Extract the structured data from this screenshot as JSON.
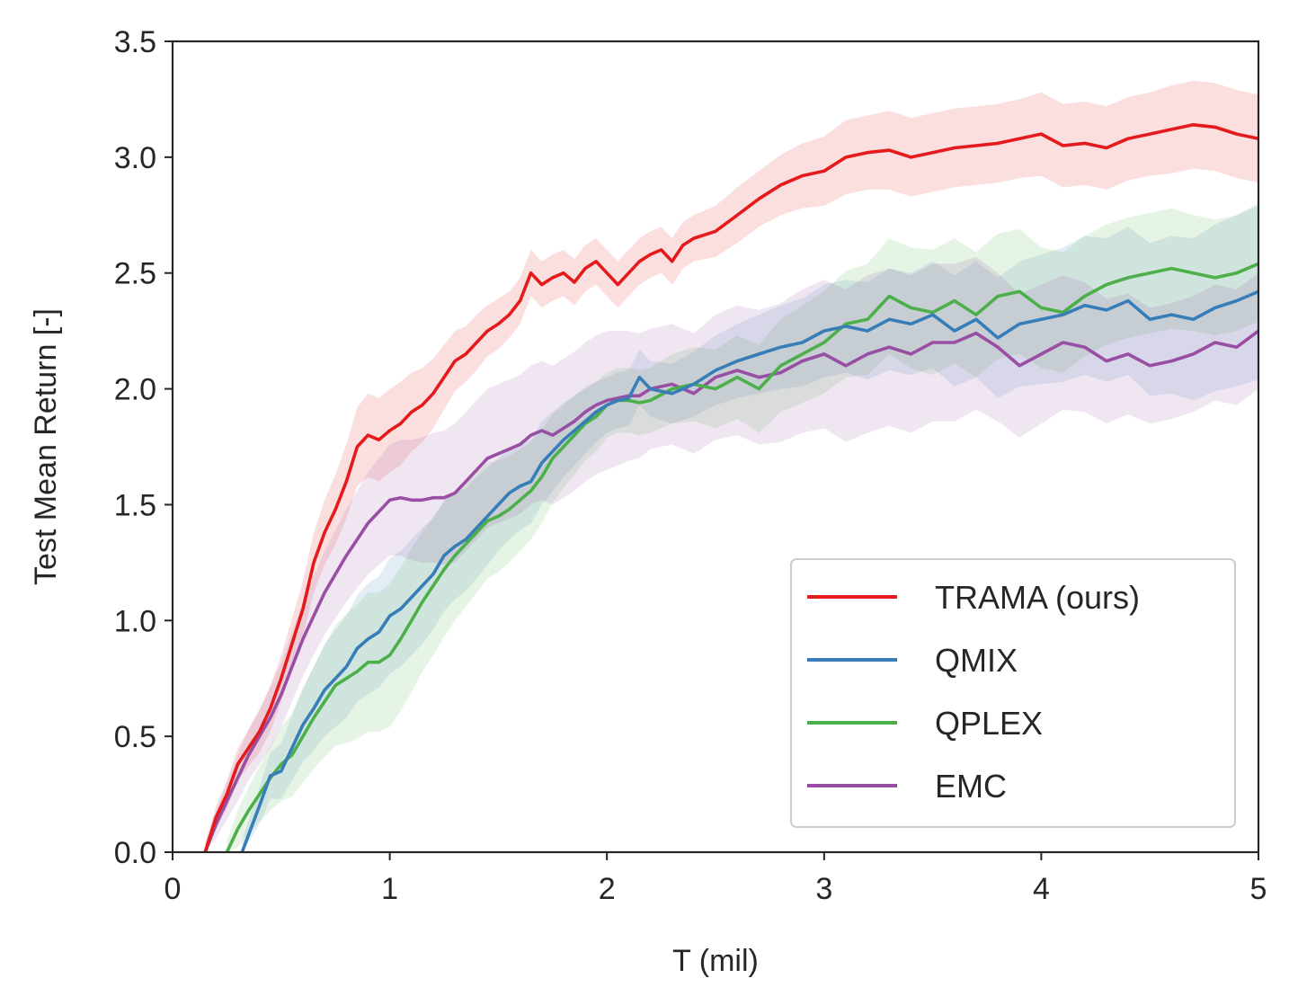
{
  "chart_data": {
    "type": "line",
    "title": "",
    "xlabel": "T (mil)",
    "ylabel": "Test Mean Return [-]",
    "xlim": [
      0,
      5
    ],
    "ylim": [
      0,
      3.5
    ],
    "xticks": [
      0,
      1,
      2,
      3,
      4,
      5
    ],
    "xtick_labels": [
      "0",
      "1",
      "2",
      "3",
      "4",
      "5"
    ],
    "yticks": [
      0,
      0.5,
      1,
      1.5,
      2,
      2.5,
      3,
      3.5
    ],
    "ytick_labels": [
      "0.0",
      "0.5",
      "1.0",
      "1.5",
      "2.0",
      "2.5",
      "3.0",
      "3.5"
    ],
    "grid": false,
    "legend_position": "bottom-right",
    "series": [
      {
        "name": "TRAMA (ours)",
        "color": "#e41a1c",
        "x": [
          0.15,
          0.2,
          0.25,
          0.3,
          0.35,
          0.4,
          0.45,
          0.5,
          0.55,
          0.6,
          0.65,
          0.7,
          0.75,
          0.8,
          0.85,
          0.9,
          0.95,
          1.0,
          1.05,
          1.1,
          1.15,
          1.2,
          1.25,
          1.3,
          1.35,
          1.4,
          1.45,
          1.5,
          1.55,
          1.6,
          1.65,
          1.7,
          1.75,
          1.8,
          1.85,
          1.9,
          1.95,
          2.0,
          2.05,
          2.1,
          2.15,
          2.2,
          2.25,
          2.3,
          2.35,
          2.4,
          2.5,
          2.6,
          2.7,
          2.8,
          2.9,
          3.0,
          3.1,
          3.2,
          3.3,
          3.4,
          3.5,
          3.6,
          3.7,
          3.8,
          3.9,
          4.0,
          4.1,
          4.2,
          4.3,
          4.4,
          4.5,
          4.6,
          4.7,
          4.8,
          4.9,
          5.0
        ],
        "y": [
          0.0,
          0.15,
          0.25,
          0.38,
          0.45,
          0.52,
          0.62,
          0.75,
          0.9,
          1.05,
          1.25,
          1.38,
          1.48,
          1.6,
          1.75,
          1.8,
          1.78,
          1.82,
          1.85,
          1.9,
          1.93,
          1.98,
          2.05,
          2.12,
          2.15,
          2.2,
          2.25,
          2.28,
          2.32,
          2.38,
          2.5,
          2.45,
          2.48,
          2.5,
          2.46,
          2.52,
          2.55,
          2.5,
          2.45,
          2.5,
          2.55,
          2.58,
          2.6,
          2.55,
          2.62,
          2.65,
          2.68,
          2.75,
          2.82,
          2.88,
          2.92,
          2.94,
          3.0,
          3.02,
          3.03,
          3.0,
          3.02,
          3.04,
          3.05,
          3.06,
          3.08,
          3.1,
          3.05,
          3.06,
          3.04,
          3.08,
          3.1,
          3.12,
          3.14,
          3.13,
          3.1,
          3.08
        ],
        "band": [
          0.04,
          0.05,
          0.06,
          0.07,
          0.08,
          0.09,
          0.1,
          0.1,
          0.11,
          0.12,
          0.13,
          0.14,
          0.15,
          0.16,
          0.17,
          0.18,
          0.18,
          0.18,
          0.18,
          0.17,
          0.16,
          0.15,
          0.14,
          0.13,
          0.12,
          0.12,
          0.11,
          0.11,
          0.1,
          0.1,
          0.1,
          0.1,
          0.1,
          0.1,
          0.1,
          0.1,
          0.1,
          0.1,
          0.1,
          0.1,
          0.1,
          0.1,
          0.1,
          0.1,
          0.1,
          0.1,
          0.11,
          0.12,
          0.12,
          0.13,
          0.14,
          0.15,
          0.16,
          0.16,
          0.17,
          0.17,
          0.17,
          0.17,
          0.17,
          0.17,
          0.17,
          0.18,
          0.18,
          0.18,
          0.18,
          0.18,
          0.18,
          0.19,
          0.19,
          0.19,
          0.19,
          0.19
        ]
      },
      {
        "name": "QMIX",
        "color": "#377eb8",
        "x": [
          0.32,
          0.4,
          0.45,
          0.5,
          0.55,
          0.6,
          0.65,
          0.7,
          0.75,
          0.8,
          0.85,
          0.9,
          0.95,
          1.0,
          1.05,
          1.1,
          1.15,
          1.2,
          1.25,
          1.3,
          1.35,
          1.4,
          1.45,
          1.5,
          1.55,
          1.6,
          1.65,
          1.7,
          1.75,
          1.8,
          1.85,
          1.9,
          1.95,
          2.0,
          2.05,
          2.1,
          2.15,
          2.2,
          2.3,
          2.4,
          2.5,
          2.6,
          2.7,
          2.8,
          2.9,
          3.0,
          3.1,
          3.2,
          3.3,
          3.4,
          3.5,
          3.6,
          3.7,
          3.8,
          3.9,
          4.0,
          4.1,
          4.2,
          4.3,
          4.4,
          4.5,
          4.6,
          4.7,
          4.8,
          4.9,
          5.0
        ],
        "y": [
          0.0,
          0.2,
          0.33,
          0.35,
          0.45,
          0.55,
          0.62,
          0.7,
          0.75,
          0.8,
          0.88,
          0.92,
          0.95,
          1.02,
          1.05,
          1.1,
          1.15,
          1.2,
          1.28,
          1.32,
          1.35,
          1.4,
          1.45,
          1.5,
          1.55,
          1.58,
          1.6,
          1.68,
          1.73,
          1.78,
          1.82,
          1.86,
          1.9,
          1.93,
          1.95,
          1.96,
          2.05,
          2.0,
          1.98,
          2.02,
          2.08,
          2.12,
          2.15,
          2.18,
          2.2,
          2.25,
          2.27,
          2.25,
          2.3,
          2.28,
          2.32,
          2.25,
          2.3,
          2.22,
          2.28,
          2.3,
          2.32,
          2.36,
          2.34,
          2.38,
          2.3,
          2.32,
          2.3,
          2.35,
          2.38,
          2.42
        ],
        "band": [
          0.05,
          0.08,
          0.1,
          0.12,
          0.14,
          0.16,
          0.18,
          0.2,
          0.21,
          0.22,
          0.23,
          0.24,
          0.24,
          0.25,
          0.25,
          0.25,
          0.25,
          0.24,
          0.24,
          0.23,
          0.22,
          0.22,
          0.21,
          0.2,
          0.2,
          0.19,
          0.18,
          0.18,
          0.17,
          0.16,
          0.15,
          0.14,
          0.13,
          0.12,
          0.12,
          0.12,
          0.12,
          0.12,
          0.13,
          0.14,
          0.15,
          0.16,
          0.17,
          0.18,
          0.19,
          0.2,
          0.2,
          0.21,
          0.22,
          0.22,
          0.23,
          0.24,
          0.25,
          0.26,
          0.27,
          0.28,
          0.29,
          0.3,
          0.31,
          0.32,
          0.33,
          0.34,
          0.35,
          0.36,
          0.37,
          0.38
        ]
      },
      {
        "name": "QPLEX",
        "color": "#4daf4a",
        "x": [
          0.25,
          0.3,
          0.35,
          0.4,
          0.45,
          0.5,
          0.55,
          0.6,
          0.65,
          0.7,
          0.75,
          0.8,
          0.85,
          0.9,
          0.95,
          1.0,
          1.05,
          1.1,
          1.15,
          1.2,
          1.25,
          1.3,
          1.35,
          1.4,
          1.45,
          1.5,
          1.55,
          1.6,
          1.65,
          1.7,
          1.75,
          1.8,
          1.85,
          1.9,
          1.95,
          2.0,
          2.05,
          2.1,
          2.15,
          2.2,
          2.3,
          2.4,
          2.5,
          2.6,
          2.7,
          2.8,
          2.9,
          3.0,
          3.1,
          3.2,
          3.3,
          3.4,
          3.5,
          3.6,
          3.7,
          3.8,
          3.9,
          4.0,
          4.1,
          4.2,
          4.3,
          4.4,
          4.5,
          4.6,
          4.7,
          4.8,
          4.9,
          5.0
        ],
        "y": [
          0.0,
          0.1,
          0.18,
          0.25,
          0.32,
          0.38,
          0.42,
          0.5,
          0.58,
          0.65,
          0.72,
          0.75,
          0.78,
          0.82,
          0.82,
          0.85,
          0.92,
          1.0,
          1.08,
          1.15,
          1.22,
          1.28,
          1.33,
          1.38,
          1.43,
          1.45,
          1.48,
          1.52,
          1.56,
          1.62,
          1.7,
          1.75,
          1.8,
          1.85,
          1.88,
          1.93,
          1.95,
          1.95,
          1.94,
          1.95,
          2.0,
          2.02,
          2.0,
          2.05,
          2.0,
          2.1,
          2.15,
          2.2,
          2.28,
          2.3,
          2.4,
          2.35,
          2.33,
          2.38,
          2.32,
          2.4,
          2.42,
          2.35,
          2.33,
          2.4,
          2.45,
          2.48,
          2.5,
          2.52,
          2.5,
          2.48,
          2.5,
          2.54
        ],
        "band": [
          0.05,
          0.08,
          0.1,
          0.12,
          0.14,
          0.16,
          0.18,
          0.2,
          0.22,
          0.24,
          0.26,
          0.28,
          0.29,
          0.3,
          0.3,
          0.31,
          0.31,
          0.31,
          0.3,
          0.3,
          0.29,
          0.28,
          0.27,
          0.26,
          0.25,
          0.24,
          0.23,
          0.22,
          0.21,
          0.2,
          0.19,
          0.18,
          0.17,
          0.16,
          0.15,
          0.14,
          0.14,
          0.14,
          0.14,
          0.14,
          0.15,
          0.16,
          0.17,
          0.18,
          0.19,
          0.2,
          0.21,
          0.22,
          0.23,
          0.24,
          0.25,
          0.26,
          0.27,
          0.27,
          0.27,
          0.27,
          0.27,
          0.26,
          0.26,
          0.26,
          0.26,
          0.26,
          0.26,
          0.26,
          0.25,
          0.25,
          0.25,
          0.25
        ]
      },
      {
        "name": "EMC",
        "color": "#984ea3",
        "x": [
          0.15,
          0.2,
          0.25,
          0.3,
          0.35,
          0.4,
          0.45,
          0.5,
          0.55,
          0.6,
          0.65,
          0.7,
          0.75,
          0.8,
          0.85,
          0.9,
          0.95,
          1.0,
          1.05,
          1.1,
          1.15,
          1.2,
          1.25,
          1.3,
          1.35,
          1.4,
          1.45,
          1.5,
          1.55,
          1.6,
          1.65,
          1.7,
          1.75,
          1.8,
          1.85,
          1.9,
          1.95,
          2.0,
          2.05,
          2.1,
          2.15,
          2.2,
          2.3,
          2.4,
          2.5,
          2.6,
          2.7,
          2.8,
          2.9,
          3.0,
          3.1,
          3.2,
          3.3,
          3.4,
          3.5,
          3.6,
          3.7,
          3.8,
          3.9,
          4.0,
          4.1,
          4.2,
          4.3,
          4.4,
          4.5,
          4.6,
          4.7,
          4.8,
          4.9,
          5.0
        ],
        "y": [
          0.0,
          0.12,
          0.22,
          0.32,
          0.42,
          0.5,
          0.58,
          0.68,
          0.8,
          0.92,
          1.02,
          1.12,
          1.2,
          1.28,
          1.35,
          1.42,
          1.47,
          1.52,
          1.53,
          1.52,
          1.52,
          1.53,
          1.53,
          1.55,
          1.6,
          1.65,
          1.7,
          1.72,
          1.74,
          1.76,
          1.8,
          1.82,
          1.8,
          1.83,
          1.86,
          1.9,
          1.93,
          1.95,
          1.96,
          1.97,
          1.97,
          2.0,
          2.02,
          1.98,
          2.05,
          2.08,
          2.05,
          2.07,
          2.12,
          2.15,
          2.1,
          2.15,
          2.18,
          2.15,
          2.2,
          2.2,
          2.24,
          2.18,
          2.1,
          2.15,
          2.2,
          2.18,
          2.12,
          2.15,
          2.1,
          2.12,
          2.15,
          2.2,
          2.18,
          2.25
        ],
        "band": [
          0.04,
          0.06,
          0.08,
          0.1,
          0.11,
          0.12,
          0.13,
          0.14,
          0.15,
          0.16,
          0.17,
          0.18,
          0.19,
          0.2,
          0.21,
          0.22,
          0.23,
          0.24,
          0.25,
          0.26,
          0.27,
          0.28,
          0.29,
          0.3,
          0.3,
          0.3,
          0.3,
          0.3,
          0.3,
          0.3,
          0.3,
          0.3,
          0.3,
          0.3,
          0.3,
          0.3,
          0.3,
          0.3,
          0.29,
          0.28,
          0.27,
          0.26,
          0.26,
          0.26,
          0.27,
          0.28,
          0.29,
          0.3,
          0.31,
          0.32,
          0.33,
          0.34,
          0.34,
          0.34,
          0.34,
          0.34,
          0.33,
          0.32,
          0.31,
          0.3,
          0.29,
          0.28,
          0.27,
          0.26,
          0.25,
          0.25,
          0.25,
          0.25,
          0.25,
          0.25
        ]
      }
    ]
  }
}
